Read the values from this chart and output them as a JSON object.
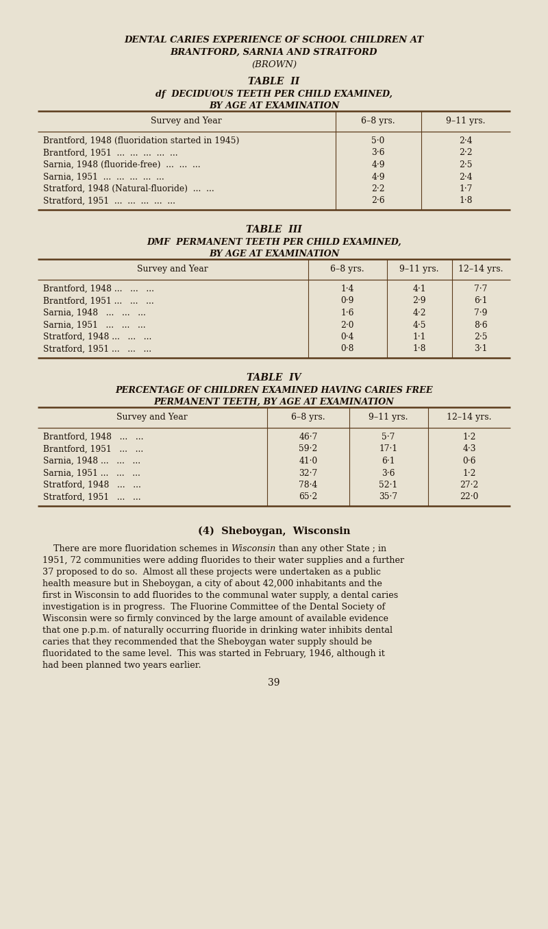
{
  "bg_color": "#e8e2d2",
  "text_color": "#1a1008",
  "page_title_line1": "DENTAL CARIES EXPERIENCE OF SCHOOL CHILDREN AT",
  "page_title_line2": "BRANTFORD, SARNIA AND STRATFORD",
  "page_title_line3": "(BROWN)",
  "table2_title": "TABLE  II",
  "table2_subtitle_line1": "df  DECIDUOUS TEETH PER CHILD EXAMINED,",
  "table2_subtitle_line2": "BY AGE AT EXAMINATION",
  "table2_headers": [
    "Survey and Year",
    "6–8 yrs.",
    "9–11 yrs."
  ],
  "table2_rows": [
    [
      "Brantford, 1948 (fluoridation started in 1945)",
      "5·0",
      "2·4"
    ],
    [
      "Brantford, 1951  ...  ...  ...  ...  ...",
      "3·6",
      "2·2"
    ],
    [
      "Sarnia, 1948 (fluoride-free)  ...  ...  ...",
      "4·9",
      "2·5"
    ],
    [
      "Sarnia, 1951  ...  ...  ...  ...  ...",
      "4·9",
      "2·4"
    ],
    [
      "Stratford, 1948 (Natural-fluoride)  ...  ...",
      "2·2",
      "1·7"
    ],
    [
      "Stratford, 1951  ...  ...  ...  ...  ...",
      "2·6",
      "1·8"
    ]
  ],
  "table3_title": "TABLE  III",
  "table3_subtitle_line1": "DMF  PERMANENT TEETH PER CHILD EXAMINED,",
  "table3_subtitle_line2": "BY AGE AT EXAMINATION",
  "table3_headers": [
    "Survey and Year",
    "6–8 yrs.",
    "9–11 yrs.",
    "12–14 yrs."
  ],
  "table3_rows": [
    [
      "Brantford, 1948 ...   ...   ...",
      "1·4",
      "4·1",
      "7·7"
    ],
    [
      "Brantford, 1951 ...   ...   ...",
      "0·9",
      "2·9",
      "6·1"
    ],
    [
      "Sarnia, 1948   ...   ...   ...",
      "1·6",
      "4·2",
      "7·9"
    ],
    [
      "Sarnia, 1951   ...   ...   ...",
      "2·0",
      "4·5",
      "8·6"
    ],
    [
      "Stratford, 1948 ...   ...   ...",
      "0·4",
      "1·1",
      "2·5"
    ],
    [
      "Stratford, 1951 ...   ...   ...",
      "0·8",
      "1·8",
      "3·1"
    ]
  ],
  "table4_title": "TABLE  IV",
  "table4_subtitle_line1": "PERCENTAGE OF CHILDREN EXAMINED HAVING CARIES FREE",
  "table4_subtitle_line2": "PERMANENT TEETH, BY AGE AT EXAMINATION",
  "table4_headers": [
    "Survey and Year",
    "6–8 yrs.",
    "9–11 yrs.",
    "12–14 yrs."
  ],
  "table4_rows": [
    [
      "Brantford, 1948   ...   ...",
      "46·7",
      "5·7",
      "1·2"
    ],
    [
      "Brantford, 1951   ...   ...",
      "59·2",
      "17·1",
      "4·3"
    ],
    [
      "Sarnia, 1948 ...   ...   ...",
      "41·0",
      "6·1",
      "0·6"
    ],
    [
      "Sarnia, 1951 ...   ...   ...",
      "32·7",
      "3·6",
      "1·2"
    ],
    [
      "Stratford, 1948   ...   ...",
      "78·4",
      "52·1",
      "27·2"
    ],
    [
      "Stratford, 1951   ...   ...",
      "65·2",
      "35·7",
      "22·0"
    ]
  ],
  "section_title": "(4)  Sheboygan,  Wisconsin",
  "body_para": "    There are more fluoridation schemes in Wisconsin than any other State ; in 1951, 72 communities were adding fluorides to their water supplies and a further 37 proposed to do so.  Almost all these projects were undertaken as a public health measure but in Sheboygan, a city of about 42,000 inhabitants and the first in Wisconsin to add fluorides to the communal water supply, a dental caries investigation is in progress.  The Fluorine Committee of the Dental Society of Wisconsin were so firmly convinced by the large amount of available evidence that one p.p.m. of naturally occurring fluoride in drinking water inhibits dental caries that they recommended that the Sheboygan water supply should be fluoridated to the same level.  This was started in February, 1946, although it had been planned two years earlier.",
  "body_lines": [
    "    There are more fluoridation schemes in ​Wisconsin​ than any other State ; in",
    "1951, 72 communities were adding fluorides to their water supplies and a further",
    "37 proposed to do so.  Almost all these projects were undertaken as a public",
    "health measure but in Sheboygan, a city of about 42,000 inhabitants and the",
    "first in Wisconsin to add fluorides to the communal water supply, a dental caries",
    "investigation is in progress.  The Fluorine Committee of the Dental Society of",
    "Wisconsin were so firmly convinced by the large amount of available evidence",
    "that one p.p.m. of naturally occurring fluoride in drinking water inhibits dental",
    "caries that they recommended that the Sheboygan water supply should be",
    "fluoridated to the same level.  This was started in February, 1946, although it",
    "had been planned two years earlier."
  ],
  "page_number": "39",
  "line_sep_color": "#5a3a1a"
}
